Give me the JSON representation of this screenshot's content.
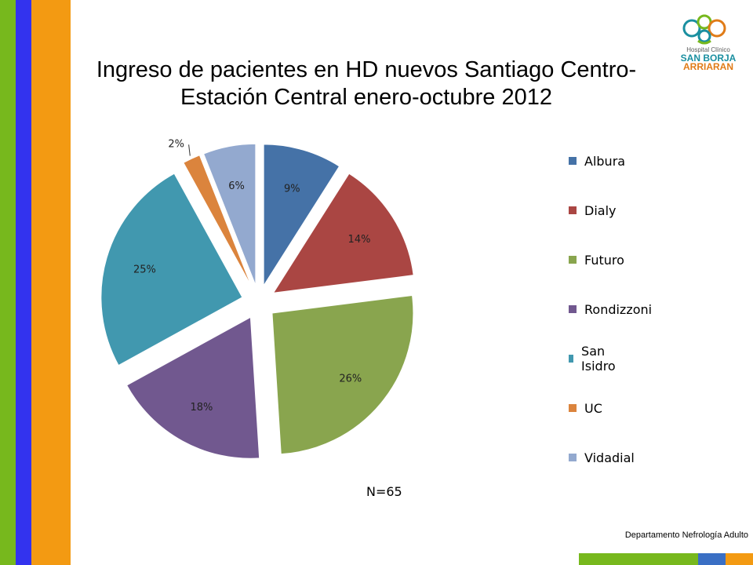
{
  "title_line1": "Ingreso de pacientes en HD nuevos Santiago Centro-",
  "title_line2": "Estación Central enero-octubre 2012",
  "logo": {
    "line1": "Hospital Clínico",
    "line2": "SAN BORJA",
    "line3": "ARRIARAN"
  },
  "note": "N=65",
  "footer": "Departamento Nefrología Adulto",
  "colors": {
    "stripe_green": "#77b81d",
    "stripe_blue": "#3333ee",
    "stripe_orange": "#f39a12"
  },
  "chart_data": {
    "type": "pie",
    "title": "Ingreso de pacientes en HD nuevos Santiago Centro-Estación Central enero-octubre 2012",
    "exploded": true,
    "legend_position": "right",
    "categories": [
      "Albura",
      "Dialy",
      "Futuro",
      "Rondizzoni",
      "San Isidro",
      "UC",
      "Vidadial"
    ],
    "values": [
      9,
      14,
      26,
      18,
      25,
      2,
      6
    ],
    "labels": [
      "9%",
      "14%",
      "26%",
      "18%",
      "25%",
      "2%",
      "6%"
    ],
    "colors": [
      "#4572a7",
      "#aa4643",
      "#89a54e",
      "#71588f",
      "#4198af",
      "#db843d",
      "#93a9cf"
    ]
  }
}
